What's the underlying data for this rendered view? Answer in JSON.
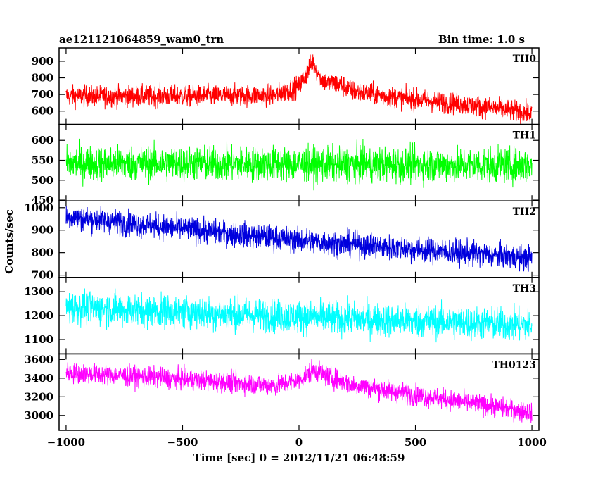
{
  "chart_data": {
    "type": "line",
    "title": "ae121121064859_wam0_trn",
    "bin_time": "Bin time: 1.0 s",
    "xlabel": "Time [sec] 0 = 2012/11/21 06:48:59",
    "ylabel": "Counts/sec",
    "x_range": [
      -1000,
      1000
    ],
    "xlim": [
      -1030,
      1030
    ],
    "x_ticks": [
      {
        "value": -1000,
        "label": "−1000"
      },
      {
        "value": -500,
        "label": "−500"
      },
      {
        "value": 0,
        "label": "0"
      },
      {
        "value": 500,
        "label": "500"
      },
      {
        "value": 1000,
        "label": "1000"
      }
    ],
    "panels": [
      {
        "name": "TH0",
        "color": "#ff0000",
        "ylim": [
          520,
          980
        ],
        "yticks": [
          600,
          700,
          800,
          900
        ],
        "trend": [
          [
            -1000,
            690
          ],
          [
            -500,
            690
          ],
          [
            -100,
            695
          ],
          [
            0,
            750
          ],
          [
            30,
            820
          ],
          [
            60,
            900
          ],
          [
            90,
            800
          ],
          [
            120,
            770
          ],
          [
            180,
            760
          ],
          [
            230,
            720
          ],
          [
            400,
            685
          ],
          [
            600,
            655
          ],
          [
            800,
            625
          ],
          [
            1000,
            585
          ]
        ],
        "noise": 32
      },
      {
        "name": "TH1",
        "color": "#00ff00",
        "ylim": [
          448,
          640
        ],
        "yticks": [
          450,
          500,
          550,
          600
        ],
        "trend": [
          [
            -1000,
            543
          ],
          [
            0,
            540
          ],
          [
            1000,
            537
          ]
        ],
        "noise": 22
      },
      {
        "name": "TH2",
        "color": "#0000dd",
        "ylim": [
          690,
          1030
        ],
        "yticks": [
          700,
          800,
          900,
          1000
        ],
        "trend": [
          [
            -1000,
            960
          ],
          [
            -500,
            905
          ],
          [
            0,
            855
          ],
          [
            500,
            815
          ],
          [
            1000,
            775
          ]
        ],
        "noise": 28
      },
      {
        "name": "TH3",
        "color": "#00ffff",
        "ylim": [
          1040,
          1360
        ],
        "yticks": [
          1100,
          1200,
          1300
        ],
        "trend": [
          [
            -1000,
            1235
          ],
          [
            0,
            1195
          ],
          [
            1000,
            1160
          ]
        ],
        "noise": 35
      },
      {
        "name": "TH0123",
        "color": "#ff00ff",
        "ylim": [
          2840,
          3660
        ],
        "yticks": [
          3000,
          3200,
          3400,
          3600
        ],
        "trend": [
          [
            -1000,
            3460
          ],
          [
            -500,
            3390
          ],
          [
            -100,
            3320
          ],
          [
            0,
            3380
          ],
          [
            60,
            3490
          ],
          [
            120,
            3420
          ],
          [
            230,
            3330
          ],
          [
            500,
            3220
          ],
          [
            800,
            3110
          ],
          [
            1000,
            3030
          ]
        ],
        "noise": 55
      }
    ]
  }
}
